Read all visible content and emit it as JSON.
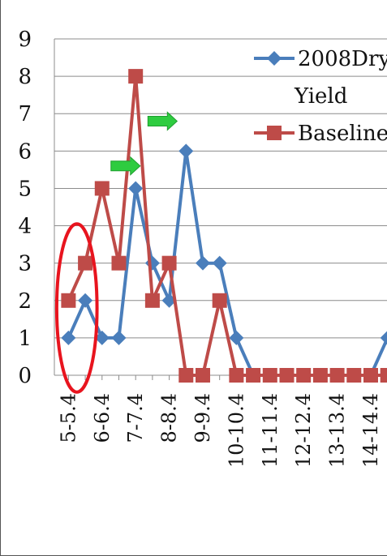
{
  "chart_data": {
    "type": "line",
    "title": "",
    "xlabel": "",
    "ylabel": "",
    "ylim": [
      0,
      9
    ],
    "yticks": [
      "0",
      "1",
      "2",
      "3",
      "4",
      "5",
      "6",
      "7",
      "8",
      "9"
    ],
    "grid": "horizontal",
    "legend_position": "top-right",
    "x_tick_labels": [
      "5-5.4",
      "6-6.4",
      "7-7.4",
      "8-8.4",
      "9-9.4",
      "10-10.4",
      "11-11.4",
      "12-12.4",
      "13-13.4",
      "14-14.4"
    ],
    "x_positions": [
      5,
      5.5,
      6,
      6.5,
      7,
      7.5,
      8,
      8.5,
      9,
      9.5,
      10,
      10.5,
      11,
      11.5,
      12,
      12.5,
      13,
      13.5,
      14,
      14.5
    ],
    "series": [
      {
        "name": "2008Dry Yield",
        "legend_lines": [
          "2008Dry",
          "Yield"
        ],
        "color": "#4a7ebb",
        "marker": "diamond",
        "values": [
          1,
          2,
          1,
          1,
          5,
          3,
          2,
          6,
          3,
          3,
          1,
          0,
          0,
          0,
          0,
          0,
          0,
          0,
          0,
          1
        ]
      },
      {
        "name": "Baseline",
        "legend_lines": [
          "Baseline"
        ],
        "color": "#be4b48",
        "marker": "square",
        "values": [
          2,
          3,
          5,
          3,
          8,
          2,
          3,
          0,
          0,
          2,
          0,
          0,
          0,
          0,
          0,
          0,
          0,
          0,
          0,
          0
        ]
      }
    ],
    "annotations": [
      {
        "type": "ellipse",
        "color": "#e8141e",
        "x_center": 5.25,
        "y_center": 1.8,
        "x_radius": 0.6,
        "y_radius": 2.25
      },
      {
        "type": "arrow",
        "color": "#2ecc40",
        "x": 6.7,
        "y": 5.6
      },
      {
        "type": "arrow",
        "color": "#2ecc40",
        "x": 7.8,
        "y": 6.8
      }
    ]
  }
}
